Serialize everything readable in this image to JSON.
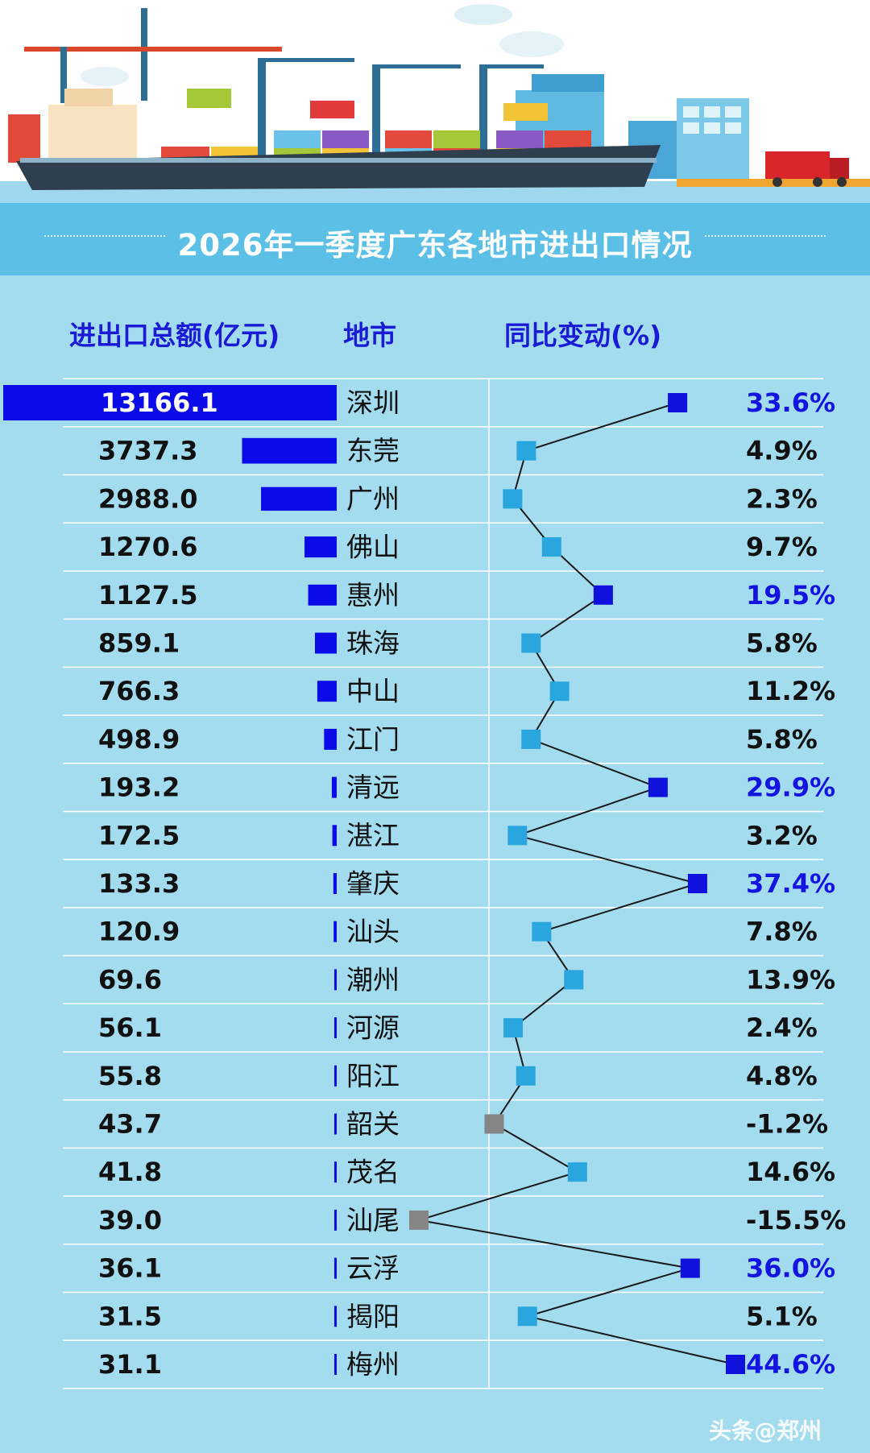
{
  "title": "2026年一季度广东各地市进出口情况",
  "headers": {
    "total": "进出口总额(亿元)",
    "city": "地市",
    "change": "同比变动(%)"
  },
  "colors": {
    "bar": "#0b0be8",
    "marker_high": "#1111dd",
    "marker_normal": "#2aa6df",
    "marker_negative": "#858585",
    "pct_high_text": "#1414e0",
    "title_banner": "#5cc0e6",
    "background": "#a4dcef"
  },
  "chart_data": {
    "type": "table",
    "title": "2026年一季度广东各地市进出口情况",
    "columns": [
      "进出口总额(亿元)",
      "地市",
      "同比变动(%)"
    ],
    "categories": [
      "深圳",
      "东莞",
      "广州",
      "佛山",
      "惠州",
      "珠海",
      "中山",
      "江门",
      "清远",
      "湛江",
      "肇庆",
      "汕头",
      "潮州",
      "河源",
      "阳江",
      "韶关",
      "茂名",
      "汕尾",
      "云浮",
      "揭阳",
      "梅州"
    ],
    "series": [
      {
        "name": "进出口总额(亿元)",
        "chart": "bar",
        "values": [
          13166.1,
          3737.3,
          2988.0,
          1270.6,
          1127.5,
          859.1,
          766.3,
          498.9,
          193.2,
          172.5,
          133.3,
          120.9,
          69.6,
          56.1,
          55.8,
          43.7,
          41.8,
          39.0,
          36.1,
          31.5,
          31.1
        ],
        "labels": [
          "13166.1",
          "3737.3",
          "2988.0",
          "1270.6",
          "1127.5",
          "859.1",
          "766.3",
          "498.9",
          "193.2",
          "172.5",
          "133.3",
          "120.9",
          "69.6",
          "56.1",
          "55.8",
          "43.7",
          "41.8",
          "39.0",
          "36.1",
          "31.5",
          "31.1"
        ]
      },
      {
        "name": "同比变动(%)",
        "chart": "line",
        "values": [
          33.6,
          4.9,
          2.3,
          9.7,
          19.5,
          5.8,
          11.2,
          5.8,
          29.9,
          3.2,
          37.4,
          7.8,
          13.9,
          2.4,
          4.8,
          -1.2,
          14.6,
          -15.5,
          36.0,
          5.1,
          44.6
        ],
        "labels": [
          "33.6%",
          "4.9%",
          "2.3%",
          "9.7%",
          "19.5%",
          "5.8%",
          "11.2%",
          "5.8%",
          "29.9%",
          "3.2%",
          "37.4%",
          "7.8%",
          "13.9%",
          "2.4%",
          "4.8%",
          "-1.2%",
          "14.6%",
          "-15.5%",
          "36.0%",
          "5.1%",
          "44.6%"
        ]
      }
    ]
  },
  "watermark": "头条@郑州"
}
